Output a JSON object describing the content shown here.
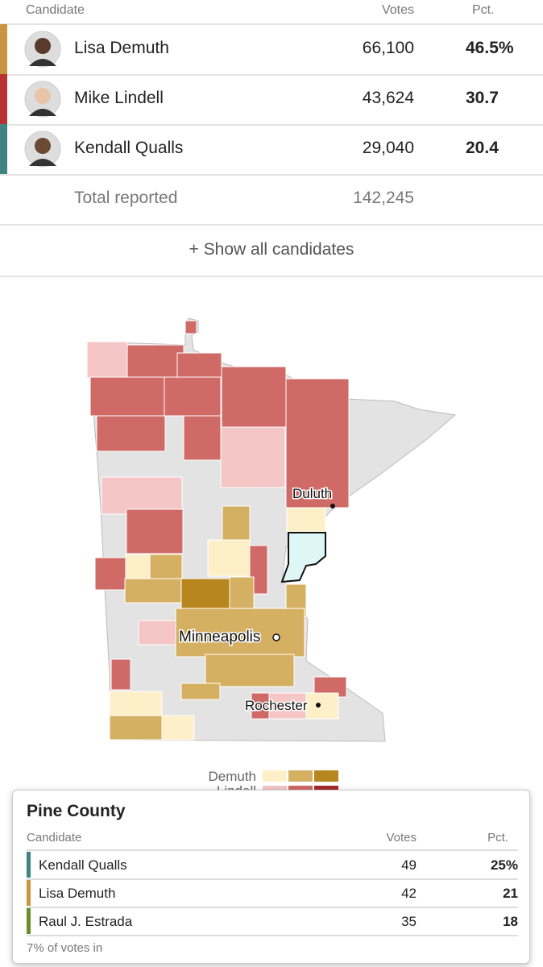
{
  "results": {
    "columns": [
      "Candidate",
      "Votes",
      "Pct."
    ],
    "rows": [
      {
        "name": "Lisa Demuth",
        "votes": "66,100",
        "pct": "46.5%",
        "color": "#c8963e"
      },
      {
        "name": "Mike Lindell",
        "votes": "43,624",
        "pct": "30.7",
        "color": "#b83232"
      },
      {
        "name": "Kendall Qualls",
        "votes": "29,040",
        "pct": "20.4",
        "color": "#3f8383"
      }
    ],
    "total": {
      "label": "Total reported",
      "votes": "142,245"
    },
    "show_all": "+ Show all candidates"
  },
  "map": {
    "cities": [
      "Duluth",
      "Minneapolis",
      "Rochester"
    ],
    "legend": [
      "Demuth",
      "Lindell"
    ]
  },
  "popup": {
    "title": "Pine County",
    "columns": [
      "Candidate",
      "Votes",
      "Pct."
    ],
    "rows": [
      {
        "name": "Kendall Qualls",
        "votes": "49",
        "pct": "25%",
        "color": "#3f8383"
      },
      {
        "name": "Lisa Demuth",
        "votes": "42",
        "pct": "21",
        "color": "#c8963e"
      },
      {
        "name": "Raul J. Estrada",
        "votes": "35",
        "pct": "18",
        "color": "#6a8f2a"
      }
    ],
    "footer": "7% of votes in"
  }
}
